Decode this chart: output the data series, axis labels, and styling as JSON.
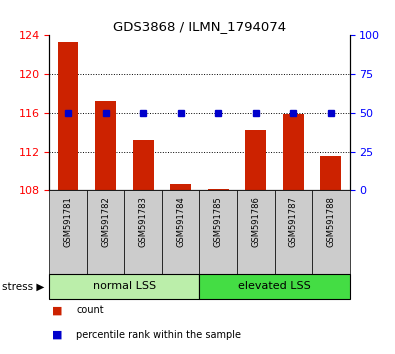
{
  "title": "GDS3868 / ILMN_1794074",
  "samples": [
    "GSM591781",
    "GSM591782",
    "GSM591783",
    "GSM591784",
    "GSM591785",
    "GSM591786",
    "GSM591787",
    "GSM591788"
  ],
  "counts": [
    123.3,
    117.2,
    113.2,
    108.7,
    108.2,
    114.2,
    115.9,
    111.5
  ],
  "percentile_values": [
    50,
    50,
    50,
    50,
    50,
    50,
    50,
    50
  ],
  "ylim_left": [
    108,
    124
  ],
  "ylim_right": [
    0,
    100
  ],
  "yticks_left": [
    108,
    112,
    116,
    120,
    124
  ],
  "yticks_right": [
    0,
    25,
    50,
    75,
    100
  ],
  "groups": [
    {
      "label": "normal LSS",
      "start": 0,
      "end": 3,
      "color": "#bbeeaa"
    },
    {
      "label": "elevated LSS",
      "start": 4,
      "end": 7,
      "color": "#44dd44"
    }
  ],
  "bar_color": "#cc2200",
  "percentile_color": "#0000cc",
  "bar_width": 0.55,
  "grid_color": "#000000",
  "legend_count_label": "count",
  "legend_pct_label": "percentile rank within the sample",
  "stress_label": "stress",
  "sample_bg_color": "#cccccc",
  "title_fontsize": 9.5,
  "tick_fontsize": 8,
  "sample_fontsize": 6,
  "group_fontsize": 8
}
